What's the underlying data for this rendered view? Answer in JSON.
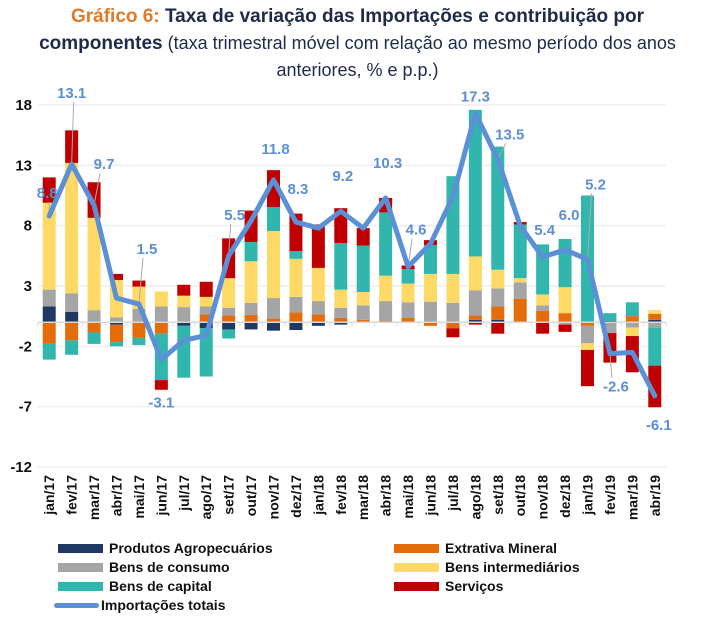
{
  "title": {
    "prefix": "Gráfico 6:",
    "bold": "Taxa de variação das Importações e contribuição por",
    "bold2": "componentes",
    "subtitle_part1": " (taxa trimestral móvel com relação ao mesmo período dos anos",
    "subtitle_part2": "anteriores, % e p.p.)"
  },
  "chart_data": {
    "type": "bar",
    "stacked": true,
    "title": "Gráfico 6: Taxa de variação das Importações e contribuição por componentes (taxa trimestral móvel com relação ao mesmo período dos anos anteriores, % e p.p.)",
    "xlabel": "",
    "ylabel": "",
    "ylim": [
      -12,
      18
    ],
    "yticks": [
      18,
      13,
      8,
      3,
      -2,
      -7,
      -12
    ],
    "grid": true,
    "legend_position": "bottom",
    "categories": [
      "jan/17",
      "fev/17",
      "mar/17",
      "abr/17",
      "mai/17",
      "jun/17",
      "jul/17",
      "ago/17",
      "set/17",
      "out/17",
      "nov/17",
      "dez/17",
      "jan/18",
      "fev/18",
      "mar/18",
      "abr/18",
      "mai/18",
      "jun/18",
      "jul/18",
      "ago/18",
      "set/18",
      "out/18",
      "nov/18",
      "dez/18",
      "jan/19",
      "fev/19",
      "mar/19",
      "abr/19"
    ],
    "series": [
      {
        "name": "Produtos Agropecuários",
        "color": "#1f3864",
        "values": [
          1.3,
          0.85,
          0.0,
          -0.2,
          0.0,
          0.0,
          -0.3,
          -0.5,
          -0.6,
          -0.6,
          -0.7,
          -0.65,
          -0.3,
          -0.2,
          0.0,
          0.0,
          0.0,
          0.0,
          0.0,
          0.2,
          0.2,
          0.0,
          0.0,
          0.0,
          0.0,
          0.1,
          0.0,
          0.2
        ]
      },
      {
        "name": "Extrativa Mineral",
        "color": "#e46c0a",
        "values": [
          -1.8,
          -1.5,
          -0.85,
          -1.45,
          -1.3,
          -0.95,
          0.0,
          0.65,
          0.55,
          0.6,
          0.3,
          0.8,
          0.65,
          0.35,
          0.2,
          0.1,
          0.35,
          -0.3,
          -0.5,
          0.35,
          1.1,
          1.95,
          0.95,
          0.75,
          -0.3,
          0.0,
          0.5,
          0.5
        ]
      },
      {
        "name": "Bens de consumo",
        "color": "#a5a5a5",
        "values": [
          1.4,
          1.55,
          1.0,
          0.4,
          1.1,
          1.3,
          1.25,
          0.65,
          0.65,
          1.0,
          1.7,
          1.3,
          1.1,
          0.85,
          1.2,
          1.65,
          1.3,
          1.7,
          1.6,
          2.1,
          1.5,
          1.35,
          0.45,
          -0.2,
          -1.45,
          -0.9,
          -0.45,
          -0.45
        ]
      },
      {
        "name": "Bens intermediários",
        "color": "#ffd966",
        "values": [
          7.2,
          10.8,
          7.65,
          3.1,
          1.85,
          1.25,
          0.95,
          0.8,
          2.45,
          3.45,
          5.55,
          3.15,
          2.75,
          1.5,
          1.1,
          2.1,
          1.55,
          2.3,
          2.4,
          2.8,
          1.55,
          0.35,
          0.9,
          2.15,
          -0.55,
          0.0,
          -0.7,
          0.3
        ]
      },
      {
        "name": "Bens de capital",
        "color": "#31b6ae",
        "values": [
          -1.3,
          -1.2,
          -0.95,
          -0.35,
          -0.6,
          -3.85,
          -4.3,
          -4.0,
          -0.75,
          1.6,
          2.0,
          0.65,
          0.0,
          3.85,
          3.85,
          5.25,
          1.2,
          2.4,
          8.1,
          12.15,
          10.2,
          4.45,
          4.15,
          4.0,
          10.5,
          0.65,
          1.15,
          -3.15
        ]
      },
      {
        "name": "Serviços",
        "color": "#c00000",
        "values": [
          2.1,
          2.7,
          2.95,
          0.5,
          0.5,
          -0.8,
          0.9,
          1.25,
          3.3,
          2.6,
          3.05,
          3.1,
          3.6,
          2.9,
          1.45,
          1.2,
          0.3,
          0.4,
          -0.75,
          -0.2,
          -0.95,
          0.2,
          -0.95,
          -0.6,
          -3.0,
          -2.45,
          -3.0,
          -3.45
        ]
      }
    ],
    "line": {
      "name": "Importações totais",
      "color": "#5b8fd6",
      "values": [
        8.8,
        13.1,
        9.7,
        2.0,
        1.5,
        -3.1,
        -1.5,
        -1.1,
        5.5,
        8.4,
        11.8,
        8.3,
        7.8,
        9.2,
        7.8,
        10.3,
        4.6,
        6.5,
        10.4,
        17.3,
        13.5,
        8.0,
        5.4,
        6.0,
        5.2,
        -2.6,
        -2.5,
        -6.1
      ]
    },
    "annotations": [
      {
        "category": "jan/17",
        "text": "8.8",
        "value": 8.8,
        "pos": "above-left"
      },
      {
        "category": "fev/17",
        "text": "13.1",
        "value": 13.1,
        "pos": "above"
      },
      {
        "category": "mar/17",
        "text": "9.7",
        "value": 9.7,
        "pos": "above"
      },
      {
        "category": "mai/17",
        "text": "1.5",
        "value": 1.5,
        "pos": "above"
      },
      {
        "category": "jun/17",
        "text": "-3.1",
        "value": -3.1,
        "pos": "below"
      },
      {
        "category": "set/17",
        "text": "5.5",
        "value": 5.5,
        "pos": "above"
      },
      {
        "category": "nov/17",
        "text": "11.8",
        "value": 11.8,
        "pos": "above"
      },
      {
        "category": "dez/17",
        "text": "8.3",
        "value": 8.3,
        "pos": "above"
      },
      {
        "category": "fev/18",
        "text": "9.2",
        "value": 9.2,
        "pos": "above"
      },
      {
        "category": "abr/18",
        "text": "10.3",
        "value": 10.3,
        "pos": "above"
      },
      {
        "category": "mai/18",
        "text": "4.6",
        "value": 4.6,
        "pos": "above"
      },
      {
        "category": "ago/18",
        "text": "17.3",
        "value": 17.3,
        "pos": "above"
      },
      {
        "category": "set/18",
        "text": "13.5",
        "value": 13.5,
        "pos": "above-right"
      },
      {
        "category": "nov/18",
        "text": "5.4",
        "value": 5.4,
        "pos": "above"
      },
      {
        "category": "dez/18",
        "text": "6.0",
        "value": 6.0,
        "pos": "above"
      },
      {
        "category": "jan/19",
        "text": "5.2",
        "value": 5.2,
        "pos": "above"
      },
      {
        "category": "fev/19",
        "text": "-2.6",
        "value": -2.6,
        "pos": "below"
      },
      {
        "category": "abr/19",
        "text": "-6.1",
        "value": -6.1,
        "pos": "below"
      }
    ]
  },
  "legend": {
    "items": [
      {
        "label": "Produtos Agropecuários",
        "color": "#1f3864",
        "kind": "bar"
      },
      {
        "label": "Extrativa Mineral",
        "color": "#e46c0a",
        "kind": "bar"
      },
      {
        "label": "Bens de consumo",
        "color": "#a5a5a5",
        "kind": "bar"
      },
      {
        "label": "Bens intermediários",
        "color": "#ffd966",
        "kind": "bar"
      },
      {
        "label": "Bens de capital",
        "color": "#31b6ae",
        "kind": "bar"
      },
      {
        "label": "Serviços",
        "color": "#c00000",
        "kind": "bar"
      },
      {
        "label": "Importações totais",
        "color": "#5b8fd6",
        "kind": "line"
      }
    ]
  }
}
